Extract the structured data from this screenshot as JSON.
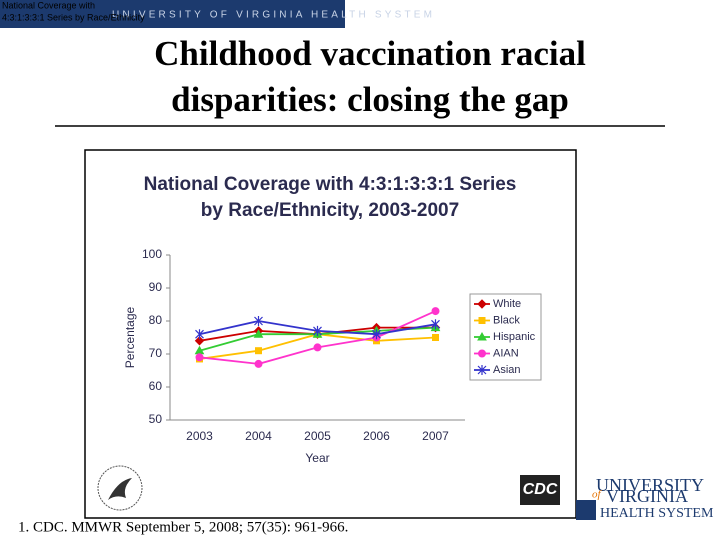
{
  "slide": {
    "header": "UNIVERSITY OF VIRGINIA HEALTH SYSTEM",
    "overlay_text": [
      "National Coverage with",
      "4:3:1:3:3:1 Series by Race/Ethnicity"
    ],
    "title": [
      "Childhood vaccination racial",
      "disparities: closing the gap"
    ],
    "footnote": "1.  CDC. MMWR September 5, 2008; 57(35): 961-966.",
    "cdc_logo": "CDC",
    "uva_logo": [
      "UNIVERSITY",
      "of",
      "VIRGINIA",
      "HEALTH SYSTEM"
    ]
  },
  "chart_data": {
    "type": "line",
    "title": [
      "National Coverage with 4:3:1:3:3:1 Series",
      "by Race/Ethnicity, 2003-2007"
    ],
    "x_label": "Year",
    "y_label": "Percentage",
    "categories": [
      "2003",
      "2004",
      "2005",
      "2006",
      "2007"
    ],
    "ylim": [
      50,
      100
    ],
    "yticks": [
      50,
      60,
      70,
      80,
      90,
      100
    ],
    "legend": "right",
    "series": [
      {
        "name": "White",
        "color": "#cc0000",
        "marker": "diamond",
        "values": [
          74,
          77,
          76,
          78,
          78
        ]
      },
      {
        "name": "Black",
        "color": "#ffc000",
        "marker": "square",
        "values": [
          68.5,
          71,
          76,
          74,
          75
        ]
      },
      {
        "name": "Hispanic",
        "color": "#33cc33",
        "marker": "triangle",
        "values": [
          71,
          76,
          76,
          77,
          78
        ]
      },
      {
        "name": "AIAN",
        "color": "#ff33cc",
        "marker": "circle",
        "values": [
          69,
          67,
          72,
          75,
          83
        ]
      },
      {
        "name": "Asian",
        "color": "#3333cc",
        "marker": "star",
        "values": [
          76,
          80,
          77,
          76,
          79
        ]
      }
    ]
  }
}
